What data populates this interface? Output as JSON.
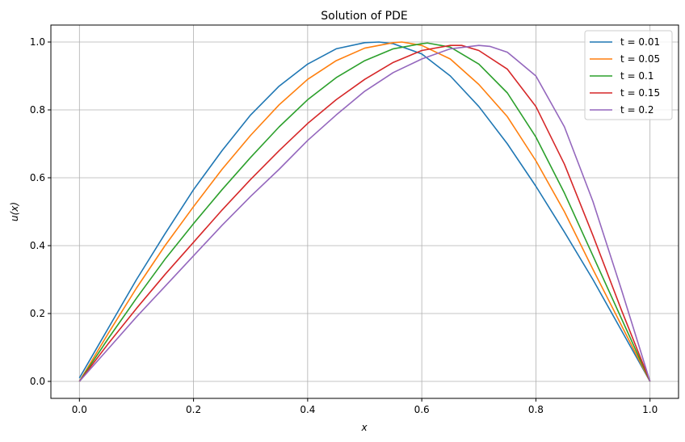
{
  "chart_data": {
    "type": "line",
    "title": "Solution of PDE",
    "xlabel": "x",
    "ylabel": "u(x)",
    "xlim": [
      -0.05,
      1.05
    ],
    "ylim": [
      -0.05,
      1.05
    ],
    "grid": true,
    "legend_position": "top-right",
    "xticks": [
      0.0,
      0.2,
      0.4,
      0.6,
      0.8,
      1.0
    ],
    "xtick_labels": [
      "0.0",
      "0.2",
      "0.4",
      "0.6",
      "0.8",
      "1.0"
    ],
    "yticks": [
      0.0,
      0.2,
      0.4,
      0.6,
      0.8,
      1.0
    ],
    "ytick_labels": [
      "0.0",
      "0.2",
      "0.4",
      "0.6",
      "0.8",
      "1.0"
    ],
    "series": [
      {
        "name": "t = 0.01",
        "color": "#1f77b4",
        "x": [
          0.0,
          0.05,
          0.1,
          0.15,
          0.2,
          0.25,
          0.3,
          0.35,
          0.4,
          0.45,
          0.5,
          0.525,
          0.55,
          0.6,
          0.65,
          0.7,
          0.75,
          0.8,
          0.85,
          0.9,
          0.95,
          1.0
        ],
        "y": [
          0.01,
          0.155,
          0.3,
          0.435,
          0.565,
          0.68,
          0.785,
          0.87,
          0.935,
          0.98,
          0.998,
          1.0,
          0.995,
          0.965,
          0.9,
          0.81,
          0.7,
          0.575,
          0.44,
          0.3,
          0.15,
          0.0
        ]
      },
      {
        "name": "t = 0.05",
        "color": "#ff7f0e",
        "x": [
          0.0,
          0.05,
          0.1,
          0.15,
          0.2,
          0.25,
          0.3,
          0.35,
          0.4,
          0.45,
          0.5,
          0.55,
          0.565,
          0.6,
          0.65,
          0.7,
          0.75,
          0.8,
          0.85,
          0.9,
          0.95,
          1.0
        ],
        "y": [
          0.0,
          0.14,
          0.275,
          0.4,
          0.515,
          0.625,
          0.725,
          0.815,
          0.89,
          0.945,
          0.982,
          0.998,
          1.0,
          0.99,
          0.95,
          0.875,
          0.78,
          0.65,
          0.5,
          0.33,
          0.165,
          0.0
        ]
      },
      {
        "name": "t = 0.1",
        "color": "#2ca02c",
        "x": [
          0.0,
          0.05,
          0.1,
          0.15,
          0.2,
          0.25,
          0.3,
          0.35,
          0.4,
          0.45,
          0.5,
          0.55,
          0.6,
          0.61,
          0.65,
          0.7,
          0.75,
          0.8,
          0.85,
          0.9,
          0.95,
          1.0
        ],
        "y": [
          0.0,
          0.125,
          0.245,
          0.36,
          0.465,
          0.565,
          0.66,
          0.75,
          0.83,
          0.895,
          0.945,
          0.98,
          0.995,
          0.997,
          0.985,
          0.935,
          0.85,
          0.72,
          0.555,
          0.37,
          0.185,
          0.0
        ]
      },
      {
        "name": "t = 0.15",
        "color": "#d62728",
        "x": [
          0.0,
          0.05,
          0.1,
          0.15,
          0.2,
          0.25,
          0.3,
          0.35,
          0.4,
          0.45,
          0.5,
          0.55,
          0.6,
          0.65,
          0.67,
          0.7,
          0.75,
          0.8,
          0.85,
          0.9,
          0.95,
          1.0
        ],
        "y": [
          0.0,
          0.11,
          0.215,
          0.315,
          0.41,
          0.505,
          0.595,
          0.68,
          0.76,
          0.83,
          0.89,
          0.94,
          0.975,
          0.99,
          0.99,
          0.975,
          0.92,
          0.81,
          0.64,
          0.43,
          0.21,
          0.0
        ]
      },
      {
        "name": "t = 0.2",
        "color": "#9467bd",
        "x": [
          0.0,
          0.05,
          0.1,
          0.15,
          0.2,
          0.25,
          0.3,
          0.35,
          0.4,
          0.45,
          0.5,
          0.55,
          0.6,
          0.65,
          0.7,
          0.72,
          0.75,
          0.8,
          0.85,
          0.9,
          0.95,
          1.0
        ],
        "y": [
          0.0,
          0.095,
          0.19,
          0.28,
          0.37,
          0.46,
          0.545,
          0.625,
          0.71,
          0.785,
          0.855,
          0.91,
          0.95,
          0.98,
          0.99,
          0.987,
          0.97,
          0.9,
          0.75,
          0.53,
          0.27,
          0.0
        ]
      }
    ]
  }
}
